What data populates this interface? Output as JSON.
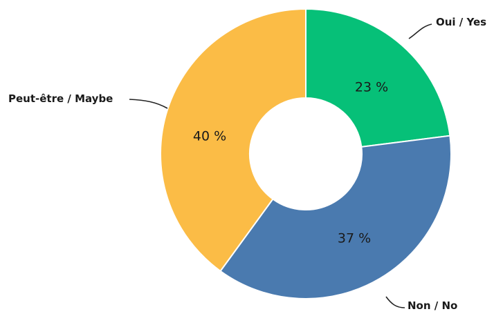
{
  "chart_data": {
    "type": "pie",
    "title": "",
    "categories": [
      "Oui / Yes",
      "Non / No",
      "Peut-être / Maybe"
    ],
    "values": [
      23,
      37,
      40
    ],
    "value_labels": [
      "23 %",
      "37 %",
      "40 %"
    ],
    "colors": [
      "#06c078",
      "#4a7aaf",
      "#fbbc46"
    ],
    "donut": true,
    "legend": "none"
  }
}
